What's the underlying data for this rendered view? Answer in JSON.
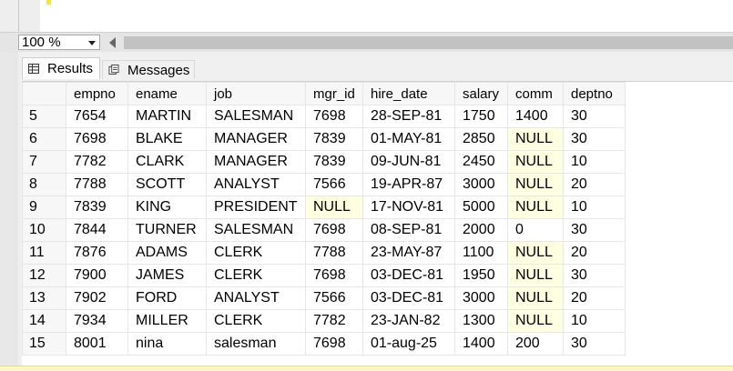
{
  "zoom": {
    "value": "100 %"
  },
  "tabs": {
    "results_label": "Results",
    "messages_label": "Messages"
  },
  "grid": {
    "columns": [
      "empno",
      "ename",
      "job",
      "mgr_id",
      "hire_date",
      "salary",
      "comm",
      "deptno"
    ],
    "rows": [
      [
        "5",
        "7654",
        "MARTIN",
        "SALESMAN",
        "7698",
        "28-SEP-81",
        "1750",
        "1400",
        "30"
      ],
      [
        "6",
        "7698",
        "BLAKE",
        "MANAGER",
        "7839",
        "01-MAY-81",
        "2850",
        "NULL",
        "30"
      ],
      [
        "7",
        "7782",
        "CLARK",
        "MANAGER",
        "7839",
        "09-JUN-81",
        "2450",
        "NULL",
        "10"
      ],
      [
        "8",
        "7788",
        "SCOTT",
        "ANALYST",
        "7566",
        "19-APR-87",
        "3000",
        "NULL",
        "20"
      ],
      [
        "9",
        "7839",
        "KING",
        "PRESIDENT",
        "NULL",
        "17-NOV-81",
        "5000",
        "NULL",
        "10"
      ],
      [
        "10",
        "7844",
        "TURNER",
        "SALESMAN",
        "7698",
        "08-SEP-81",
        "2000",
        "0",
        "30"
      ],
      [
        "11",
        "7876",
        "ADAMS",
        "CLERK",
        "7788",
        "23-MAY-87",
        "1100",
        "NULL",
        "20"
      ],
      [
        "12",
        "7900",
        "JAMES",
        "CLERK",
        "7698",
        "03-DEC-81",
        "1950",
        "NULL",
        "30"
      ],
      [
        "13",
        "7902",
        "FORD",
        "ANALYST",
        "7566",
        "03-DEC-81",
        "3000",
        "NULL",
        "20"
      ],
      [
        "14",
        "7934",
        "MILLER",
        "CLERK",
        "7782",
        "23-JAN-82",
        "1300",
        "NULL",
        "10"
      ],
      [
        "15",
        "8001",
        "nina",
        "salesman",
        "7698",
        "01-aug-25",
        "1400",
        "200",
        "30"
      ]
    ]
  },
  "colors": {
    "null_cell": "#ffffe1",
    "header_bg": "#f7f7f7",
    "gridline": "#e6e6e6"
  }
}
